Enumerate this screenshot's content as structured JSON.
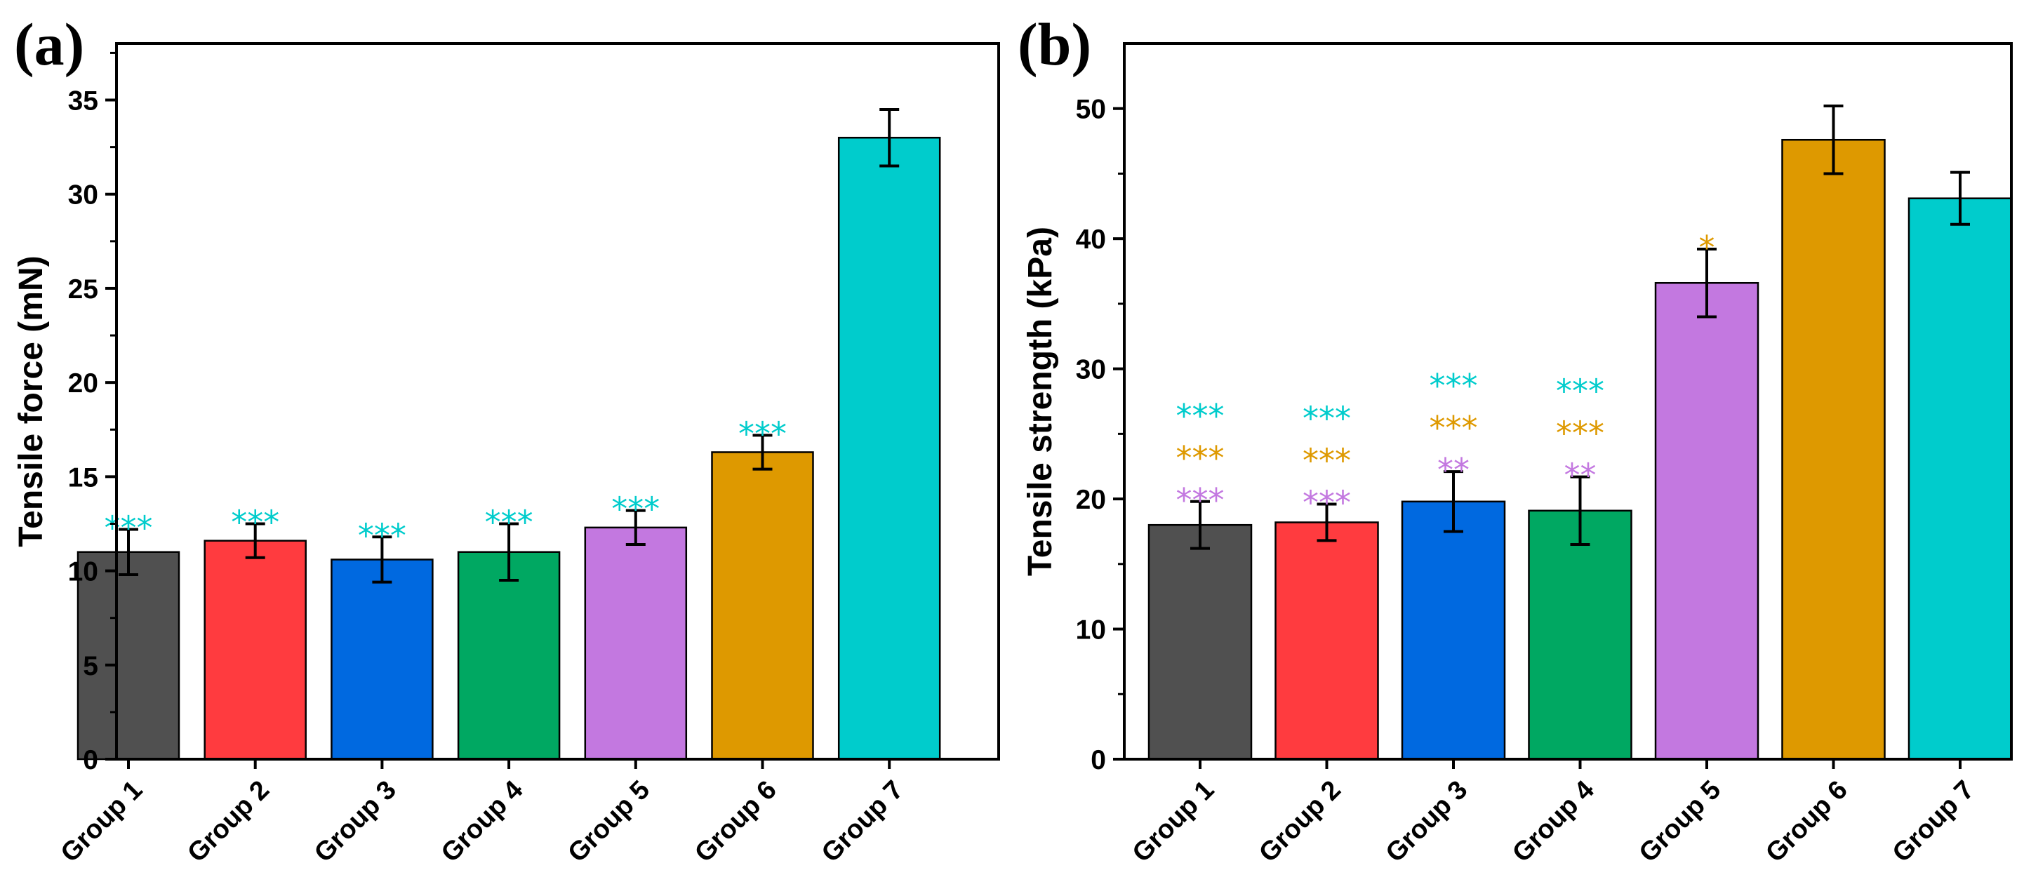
{
  "chart_data": [
    {
      "panel": "(a)",
      "type": "bar",
      "ylabel": "Tensile force (mN)",
      "xlabel": "",
      "ylim": [
        0,
        38
      ],
      "yticks": [
        0,
        5,
        10,
        15,
        20,
        25,
        30,
        35
      ],
      "categories": [
        "Group 1",
        "Group 2",
        "Group 3",
        "Group 4",
        "Group 5",
        "Group 6",
        "Group 7"
      ],
      "values": [
        11.0,
        11.6,
        10.6,
        11.0,
        12.3,
        16.3,
        33.0
      ],
      "errors": [
        1.2,
        0.9,
        1.2,
        1.5,
        0.9,
        0.9,
        1.5
      ],
      "colors": [
        "#505050",
        "#FF3B3F",
        "#0069E0",
        "#00A862",
        "#C378E0",
        "#DE9900",
        "#00CCCC"
      ],
      "significance": [
        [
          {
            "text": "***",
            "color": "#00CCCC"
          }
        ],
        [
          {
            "text": "***",
            "color": "#00CCCC"
          }
        ],
        [
          {
            "text": "***",
            "color": "#00CCCC"
          }
        ],
        [
          {
            "text": "***",
            "color": "#00CCCC"
          }
        ],
        [
          {
            "text": "***",
            "color": "#00CCCC"
          }
        ],
        [
          {
            "text": "***",
            "color": "#00CCCC"
          }
        ],
        []
      ]
    },
    {
      "panel": "(b)",
      "type": "bar",
      "ylabel": "Tensile strength (kPa)",
      "xlabel": "",
      "ylim": [
        0,
        55
      ],
      "yticks": [
        0,
        10,
        20,
        30,
        40,
        50
      ],
      "categories": [
        "Group 1",
        "Group 2",
        "Group 3",
        "Group 4",
        "Group 5",
        "Group 6",
        "Group 7"
      ],
      "values": [
        18.0,
        18.2,
        19.8,
        19.1,
        36.6,
        47.6,
        43.1
      ],
      "errors": [
        1.8,
        1.4,
        2.3,
        2.6,
        2.6,
        2.6,
        2.0
      ],
      "colors": [
        "#505050",
        "#FF3B3F",
        "#0069E0",
        "#00A862",
        "#C378E0",
        "#DE9900",
        "#00CCCC"
      ],
      "significance": [
        [
          {
            "text": "***",
            "color": "#00CCCC"
          },
          {
            "text": "***",
            "color": "#DE9900"
          },
          {
            "text": "***",
            "color": "#C378E0"
          }
        ],
        [
          {
            "text": "***",
            "color": "#00CCCC"
          },
          {
            "text": "***",
            "color": "#DE9900"
          },
          {
            "text": "***",
            "color": "#C378E0"
          }
        ],
        [
          {
            "text": "***",
            "color": "#00CCCC"
          },
          {
            "text": "***",
            "color": "#DE9900"
          },
          {
            "text": "**",
            "color": "#C378E0"
          }
        ],
        [
          {
            "text": "***",
            "color": "#00CCCC"
          },
          {
            "text": "***",
            "color": "#DE9900"
          },
          {
            "text": "**",
            "color": "#C378E0"
          }
        ],
        [
          {
            "text": "*",
            "color": "#DE9900"
          }
        ],
        [],
        []
      ]
    }
  ]
}
